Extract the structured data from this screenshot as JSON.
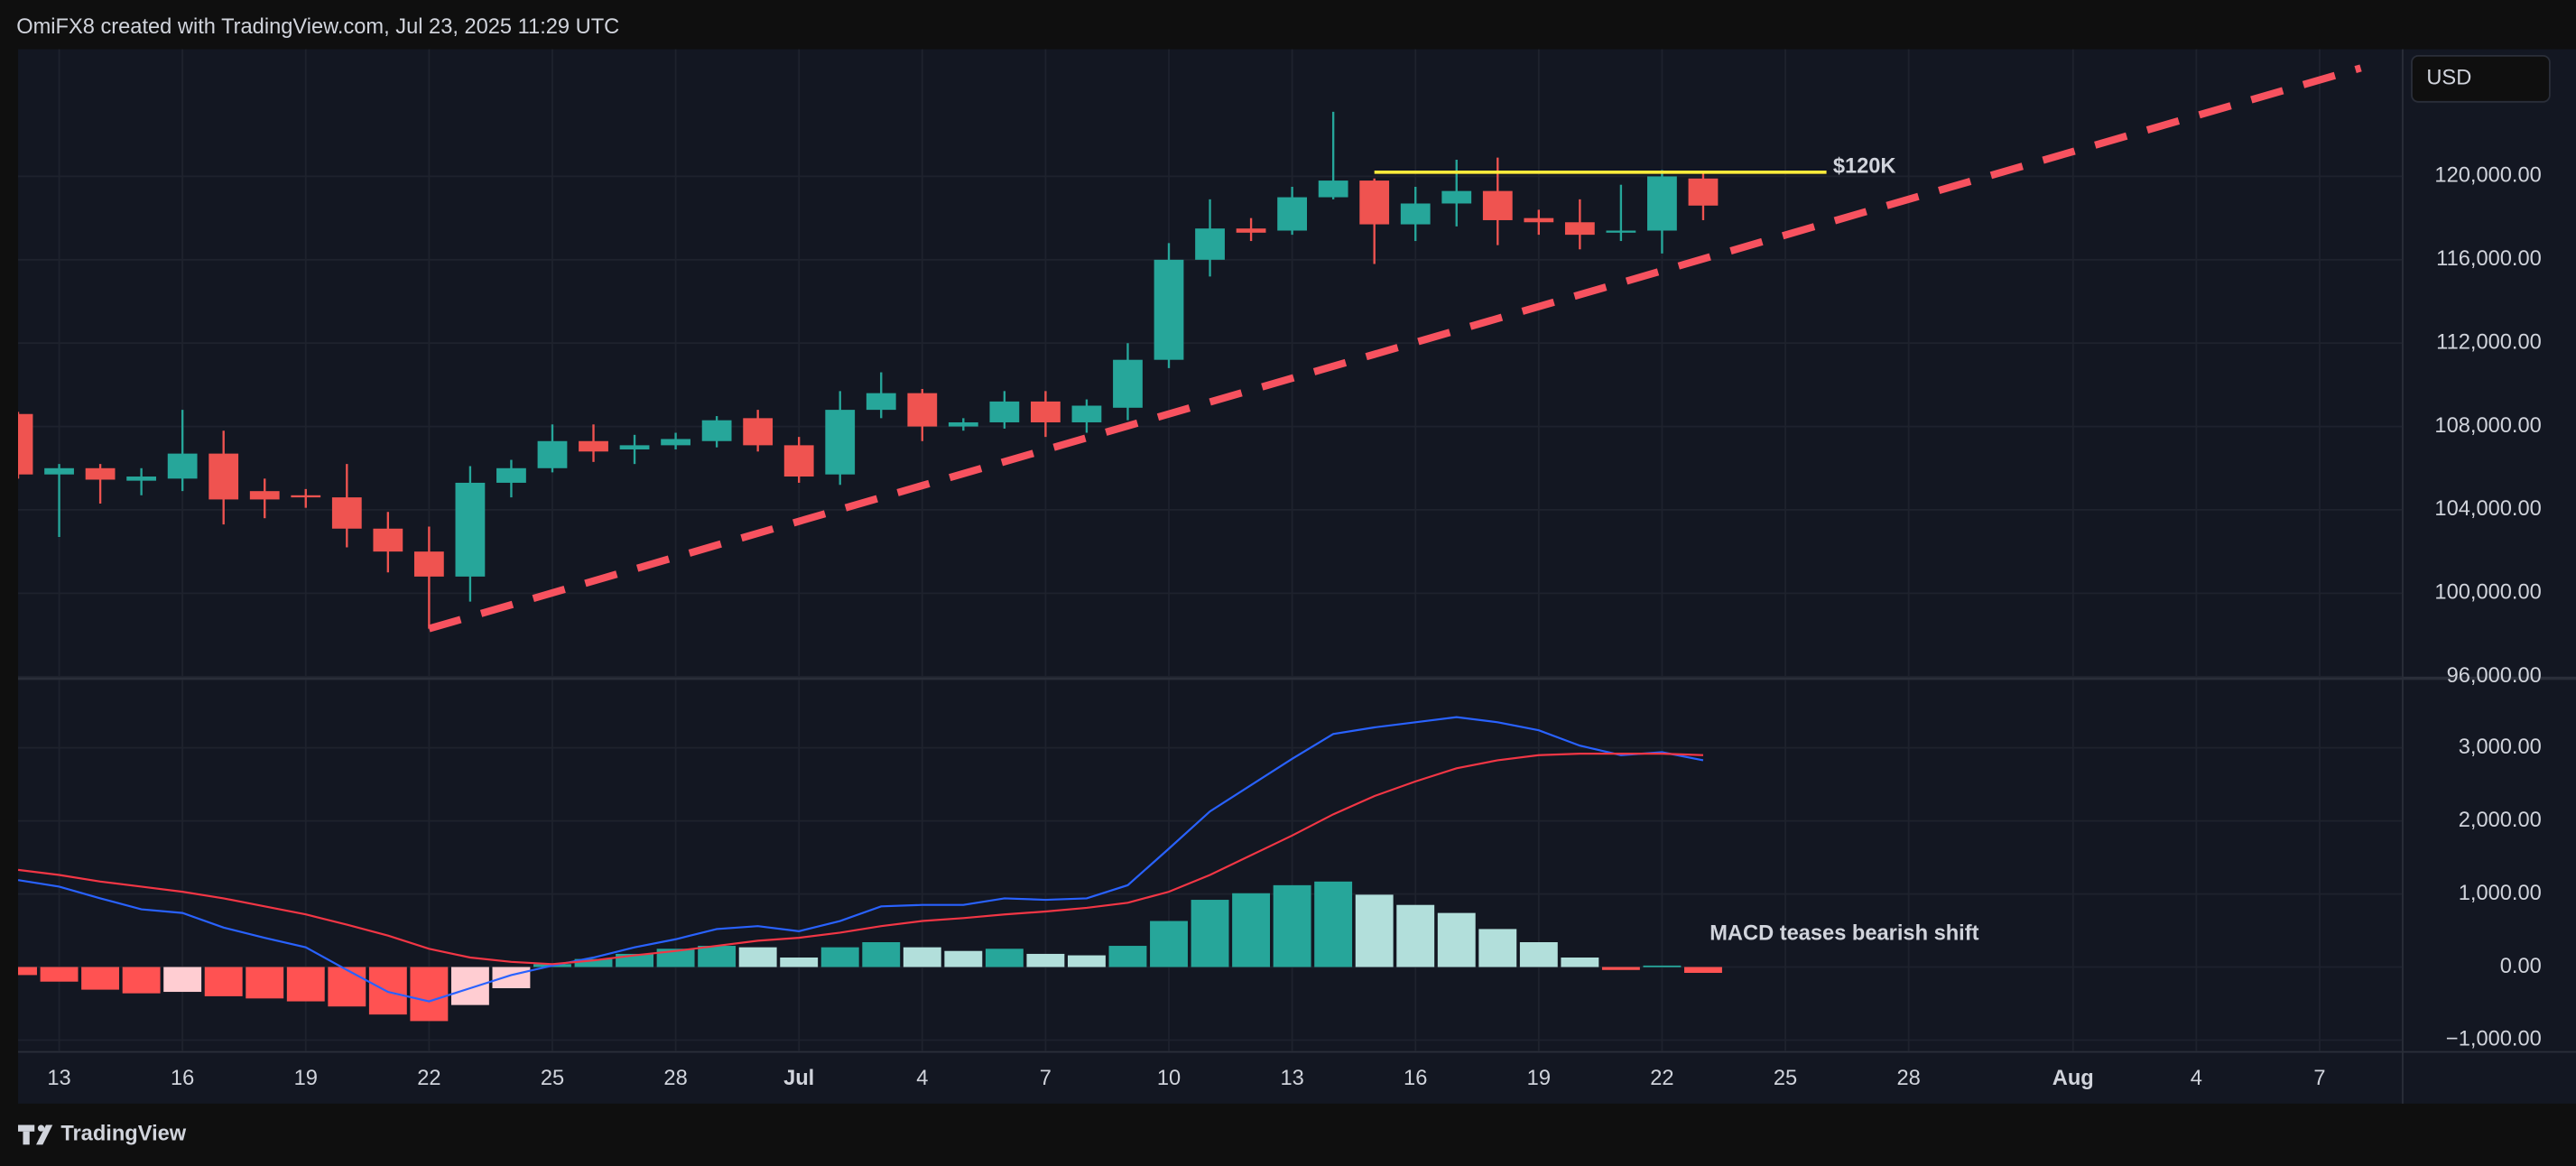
{
  "header": "OmiFX8 created with TradingView.com, Jul 23, 2025 11:29 UTC",
  "footer": "TradingView",
  "chart_data": [
    {
      "type": "candlestick",
      "currency": "USD",
      "x": [
        "06-12",
        "06-13",
        "06-14",
        "06-15",
        "06-16",
        "06-17",
        "06-18",
        "06-19",
        "06-20",
        "06-21",
        "06-22",
        "06-23",
        "06-24",
        "06-25",
        "06-26",
        "06-27",
        "06-28",
        "06-29",
        "06-30",
        "07-01",
        "07-02",
        "07-03",
        "07-04",
        "07-05",
        "07-06",
        "07-07",
        "07-08",
        "07-09",
        "07-10",
        "07-11",
        "07-12",
        "07-13",
        "07-14",
        "07-15",
        "07-16",
        "07-17",
        "07-18",
        "07-19",
        "07-20",
        "07-21",
        "07-22",
        "07-23"
      ],
      "open": [
        108600,
        105700,
        106000,
        105400,
        105500,
        106700,
        104900,
        104700,
        104600,
        103100,
        102000,
        100800,
        105300,
        106000,
        107300,
        106900,
        107100,
        107300,
        108400,
        107100,
        105700,
        108800,
        109600,
        108000,
        108200,
        109200,
        108200,
        108900,
        111200,
        116000,
        117500,
        117400,
        119000,
        119800,
        117700,
        118700,
        119300,
        118000,
        117800,
        117300,
        117400,
        119900
      ],
      "high": [
        108700,
        106200,
        106200,
        106000,
        108800,
        107800,
        105500,
        105000,
        106200,
        103900,
        103200,
        106100,
        106400,
        108100,
        108100,
        107600,
        107700,
        108500,
        108800,
        107500,
        109700,
        110600,
        109800,
        108400,
        109700,
        109700,
        109300,
        112000,
        116800,
        118900,
        118000,
        119500,
        123100,
        119900,
        119500,
        120800,
        120900,
        118400,
        118900,
        119600,
        120300,
        120200
      ],
      "low": [
        105500,
        102700,
        104300,
        104700,
        104900,
        103300,
        103600,
        104100,
        102200,
        101000,
        98300,
        99600,
        104600,
        105800,
        106300,
        106200,
        106900,
        107000,
        106800,
        105300,
        105200,
        108400,
        107300,
        107800,
        107900,
        107500,
        107700,
        108300,
        110800,
        115200,
        116900,
        117200,
        118900,
        115800,
        116900,
        117600,
        116700,
        117200,
        116500,
        116900,
        116300,
        117900
      ],
      "close": [
        105700,
        106000,
        105450,
        105600,
        106700,
        104500,
        104500,
        104600,
        103100,
        102000,
        100800,
        105300,
        106000,
        107300,
        106800,
        107100,
        107400,
        108300,
        107100,
        105600,
        108800,
        109600,
        108000,
        108200,
        109200,
        108200,
        109000,
        111200,
        116000,
        117500,
        117300,
        119000,
        119800,
        117700,
        118700,
        119300,
        117900,
        117800,
        117200,
        117400,
        120000,
        118600
      ],
      "up_color": "#26a69a",
      "down_color": "#ef5350",
      "xlim": [
        "06-12",
        "08-09"
      ],
      "xticks": [
        {
          "value": "06-13",
          "label": "13"
        },
        {
          "value": "06-16",
          "label": "16"
        },
        {
          "value": "06-19",
          "label": "19"
        },
        {
          "value": "06-22",
          "label": "22"
        },
        {
          "value": "06-25",
          "label": "25"
        },
        {
          "value": "06-28",
          "label": "28"
        },
        {
          "value": "07-01",
          "label": "Jul"
        },
        {
          "value": "07-04",
          "label": "4"
        },
        {
          "value": "07-07",
          "label": "7"
        },
        {
          "value": "07-10",
          "label": "10"
        },
        {
          "value": "07-13",
          "label": "13"
        },
        {
          "value": "07-16",
          "label": "16"
        },
        {
          "value": "07-19",
          "label": "19"
        },
        {
          "value": "07-22",
          "label": "22"
        },
        {
          "value": "07-25",
          "label": "25"
        },
        {
          "value": "07-28",
          "label": "28"
        },
        {
          "value": "08-01",
          "label": "Aug"
        },
        {
          "value": "08-04",
          "label": "4"
        },
        {
          "value": "08-07",
          "label": "7"
        }
      ],
      "ylim": [
        96000,
        126100
      ],
      "yticks": [
        {
          "value": 96000,
          "label": "96,000.00"
        },
        {
          "value": 100000,
          "label": "100,000.00"
        },
        {
          "value": 104000,
          "label": "104,000.00"
        },
        {
          "value": 108000,
          "label": "108,000.00"
        },
        {
          "value": 112000,
          "label": "112,000.00"
        },
        {
          "value": 116000,
          "label": "116,000.00"
        },
        {
          "value": 120000,
          "label": "120,000.00"
        }
      ],
      "grid": true,
      "trendline": {
        "x": [
          "06-22",
          "08-08"
        ],
        "y": [
          98300,
          125200
        ],
        "color": "#f7525f"
      },
      "resistance": {
        "x": [
          "07-15",
          "07-26"
        ],
        "y": [
          120200,
          120200
        ],
        "color": "#ffeb3b",
        "label": "$120K"
      }
    },
    {
      "type": "macd",
      "x": [
        "06-12",
        "06-13",
        "06-14",
        "06-15",
        "06-16",
        "06-17",
        "06-18",
        "06-19",
        "06-20",
        "06-21",
        "06-22",
        "06-23",
        "06-24",
        "06-25",
        "06-26",
        "06-27",
        "06-28",
        "06-29",
        "06-30",
        "07-01",
        "07-02",
        "07-03",
        "07-04",
        "07-05",
        "07-06",
        "07-07",
        "07-08",
        "07-09",
        "07-10",
        "07-11",
        "07-12",
        "07-13",
        "07-14",
        "07-15",
        "07-16",
        "07-17",
        "07-18",
        "07-19",
        "07-20",
        "07-21",
        "07-22",
        "07-23"
      ],
      "series": [
        {
          "color": "#2962ff",
          "values": [
            1190,
            1100,
            940,
            790,
            740,
            540,
            400,
            270,
            -40,
            -340,
            -470,
            -290,
            -110,
            20,
            130,
            270,
            380,
            520,
            560,
            490,
            630,
            830,
            850,
            850,
            940,
            920,
            940,
            1120,
            1620,
            2130,
            2490,
            2850,
            3190,
            3280,
            3350,
            3420,
            3350,
            3240,
            3030,
            2900,
            2940,
            2830
          ]
        },
        {
          "color": "#f23645",
          "values": [
            1330,
            1260,
            1170,
            1100,
            1030,
            940,
            830,
            720,
            580,
            430,
            250,
            130,
            70,
            40,
            90,
            160,
            220,
            290,
            360,
            400,
            470,
            560,
            630,
            670,
            720,
            760,
            810,
            880,
            1030,
            1260,
            1530,
            1800,
            2090,
            2340,
            2540,
            2720,
            2830,
            2900,
            2920,
            2920,
            2920,
            2900
          ]
        }
      ],
      "histogram": {
        "values": [
          -110,
          -200,
          -310,
          -360,
          -340,
          -400,
          -430,
          -470,
          -540,
          -650,
          -740,
          -520,
          -290,
          40,
          110,
          180,
          250,
          290,
          270,
          130,
          270,
          340,
          270,
          220,
          250,
          180,
          160,
          290,
          630,
          920,
          1010,
          1120,
          1170,
          990,
          850,
          740,
          520,
          340,
          130,
          -40,
          20,
          -80
        ],
        "colors": {
          "rising_above": "#26a69a",
          "falling_above": "#b2dfdb",
          "rising_below": "#ffcdd2",
          "falling_below": "#ff5252"
        }
      },
      "ylim": [
        -1150,
        3930
      ],
      "yticks": [
        {
          "value": -1000,
          "label": "−1,000.00"
        },
        {
          "value": 0,
          "label": "0.00"
        },
        {
          "value": 1000,
          "label": "1,000.00"
        },
        {
          "value": 2000,
          "label": "2,000.00"
        },
        {
          "value": 3000,
          "label": "3,000.00"
        }
      ],
      "grid": true,
      "annotation": "MACD teases bearish shift"
    }
  ]
}
